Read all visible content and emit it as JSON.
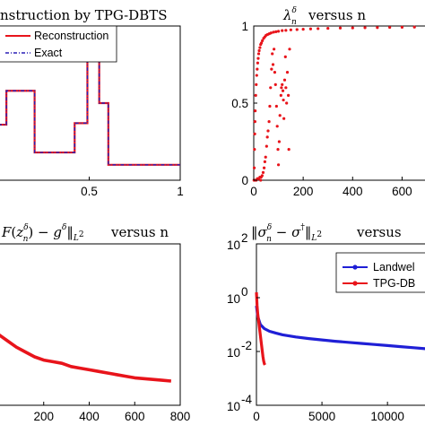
{
  "chart_data": [
    {
      "type": "line",
      "title": "nstruction by TPG-DBTS",
      "xlim": [
        0,
        1
      ],
      "ylim": [
        0,
        1
      ],
      "xticks": [
        0.5,
        1
      ],
      "xtick_labels": [
        "0.5",
        "1"
      ],
      "legend": {
        "placement": "top-left",
        "entries": [
          "Reconstruction",
          "Exact"
        ]
      },
      "series": [
        {
          "name": "Reconstruction",
          "color": "#e8141b",
          "x": [
            0.0,
            0.045,
            0.045,
            0.2,
            0.2,
            0.255,
            0.255,
            0.42,
            0.42,
            0.49,
            0.49,
            0.555,
            0.555,
            0.605,
            0.605,
            0.76,
            0.76,
            1.0
          ],
          "y": [
            0.36,
            0.36,
            0.58,
            0.58,
            0.18,
            0.18,
            0.18,
            0.18,
            0.37,
            0.37,
            0.82,
            0.82,
            0.5,
            0.5,
            0.1,
            0.1,
            0.1,
            0.1
          ]
        },
        {
          "name": "Exact",
          "color": "#2a1fb5",
          "x": [
            0.0,
            0.045,
            0.045,
            0.2,
            0.2,
            0.255,
            0.255,
            0.42,
            0.42,
            0.49,
            0.49,
            0.555,
            0.555,
            0.605,
            0.605,
            0.76,
            0.76,
            1.0
          ],
          "y": [
            0.36,
            0.36,
            0.58,
            0.58,
            0.18,
            0.18,
            0.18,
            0.18,
            0.37,
            0.37,
            0.82,
            0.82,
            0.5,
            0.5,
            0.1,
            0.1,
            0.1,
            0.1
          ]
        }
      ]
    },
    {
      "type": "scatter",
      "title": "versus n",
      "xlim": [
        0,
        700
      ],
      "ylim": [
        0,
        1
      ],
      "xticks": [
        0,
        200,
        400,
        600
      ],
      "xtick_labels": [
        "0",
        "200",
        "400",
        "600"
      ],
      "yticks": [
        0,
        0.5,
        1
      ],
      "ytick_labels": [
        "0",
        "0.5",
        "1"
      ],
      "series": [
        {
          "name": "",
          "color": "#e8141b",
          "x": [
            1,
            2,
            3,
            4,
            5,
            6,
            8,
            10,
            12,
            14,
            16,
            18,
            20,
            22,
            25,
            28,
            31,
            35,
            40,
            45,
            50,
            56,
            63,
            70,
            80,
            90,
            100,
            115,
            130,
            150,
            175,
            200,
            230,
            260,
            300,
            350,
            400,
            450,
            500,
            550,
            600,
            650,
            700
          ],
          "y": [
            0.0,
            0.08,
            0.2,
            0.3,
            0.38,
            0.45,
            0.55,
            0.62,
            0.68,
            0.72,
            0.76,
            0.79,
            0.82,
            0.84,
            0.86,
            0.88,
            0.89,
            0.905,
            0.92,
            0.93,
            0.94,
            0.945,
            0.95,
            0.955,
            0.96,
            0.963,
            0.966,
            0.97,
            0.972,
            0.975,
            0.977,
            0.979,
            0.981,
            0.983,
            0.985,
            0.987,
            0.988,
            0.989,
            0.99,
            0.991,
            0.992,
            0.993,
            0.994
          ]
        },
        {
          "name": "",
          "color": "#e8141b",
          "x": [
            5,
            10,
            15,
            20,
            25,
            28,
            30,
            34,
            38,
            42,
            45,
            48,
            52,
            55,
            58,
            62,
            65,
            68,
            72,
            75,
            78,
            82,
            85,
            88,
            92,
            95,
            98,
            100,
            103,
            106,
            110,
            112,
            115,
            118,
            120,
            122,
            125,
            128,
            130,
            133,
            136,
            140,
            142,
            145
          ],
          "y": [
            0.0,
            0.0,
            0.01,
            0.01,
            0.02,
            0.0,
            0.02,
            0.03,
            0.05,
            0.08,
            0.12,
            0.15,
            0.22,
            0.28,
            0.32,
            0.38,
            0.48,
            0.6,
            0.72,
            0.82,
            0.75,
            0.85,
            0.7,
            0.62,
            0.48,
            0.35,
            0.2,
            0.1,
            0.25,
            0.42,
            0.55,
            0.6,
            0.62,
            0.58,
            0.52,
            0.4,
            0.65,
            0.8,
            0.6,
            0.5,
            0.7,
            0.55,
            0.2,
            0.85
          ]
        }
      ]
    },
    {
      "type": "line",
      "title": "versus n",
      "xlim": [
        0,
        800
      ],
      "ylim": [
        0,
        1
      ],
      "xticks": [
        200,
        400,
        600,
        800
      ],
      "xtick_labels": [
        "200",
        "400",
        "600",
        "800"
      ],
      "series": [
        {
          "name": "",
          "color": "#e8141b",
          "x": [
            0,
            40,
            80,
            120,
            160,
            200,
            240,
            280,
            320,
            360,
            400,
            440,
            480,
            520,
            560,
            600,
            640,
            680,
            720,
            760
          ],
          "y": [
            0.44,
            0.4,
            0.36,
            0.33,
            0.3,
            0.28,
            0.27,
            0.26,
            0.24,
            0.23,
            0.22,
            0.21,
            0.2,
            0.19,
            0.18,
            0.17,
            0.165,
            0.16,
            0.155,
            0.15
          ]
        }
      ]
    },
    {
      "type": "line",
      "title": "versus",
      "xlim": [
        0,
        13000
      ],
      "ylim": [
        -4,
        2
      ],
      "yscale": "log",
      "xticks": [
        0,
        5000,
        10000
      ],
      "xtick_labels": [
        "0",
        "5000",
        "10000"
      ],
      "yticks": [
        -4,
        -2,
        0,
        2
      ],
      "ytick_labels": [
        "10",
        "10",
        "10",
        "10"
      ],
      "ytick_exponents": [
        "-4",
        "-2",
        "0",
        "2"
      ],
      "legend": {
        "placement": "top-right",
        "entries": [
          "Landwel",
          "TPG-DB"
        ]
      },
      "series": [
        {
          "name": "Landwel",
          "color": "#1f1fd6",
          "x": [
            0,
            100,
            300,
            600,
            1000,
            1500,
            2000,
            3000,
            4000,
            5000,
            6000,
            7000,
            8000,
            9000,
            10000,
            11000,
            12000,
            13000
          ],
          "y": [
            -0.3,
            -0.7,
            -1.0,
            -1.15,
            -1.25,
            -1.32,
            -1.38,
            -1.46,
            -1.52,
            -1.57,
            -1.62,
            -1.66,
            -1.7,
            -1.74,
            -1.78,
            -1.82,
            -1.86,
            -1.9
          ]
        },
        {
          "name": "TPG-DB",
          "color": "#e8141b",
          "x": [
            0,
            20,
            50,
            100,
            150,
            200,
            250,
            300,
            350,
            400,
            450,
            500,
            550,
            600,
            650
          ],
          "y": [
            0.2,
            0.0,
            -0.3,
            -0.6,
            -0.8,
            -1.0,
            -1.2,
            -1.4,
            -1.6,
            -1.8,
            -2.0,
            -2.2,
            -2.35,
            -2.45,
            -2.5
          ]
        }
      ]
    }
  ]
}
